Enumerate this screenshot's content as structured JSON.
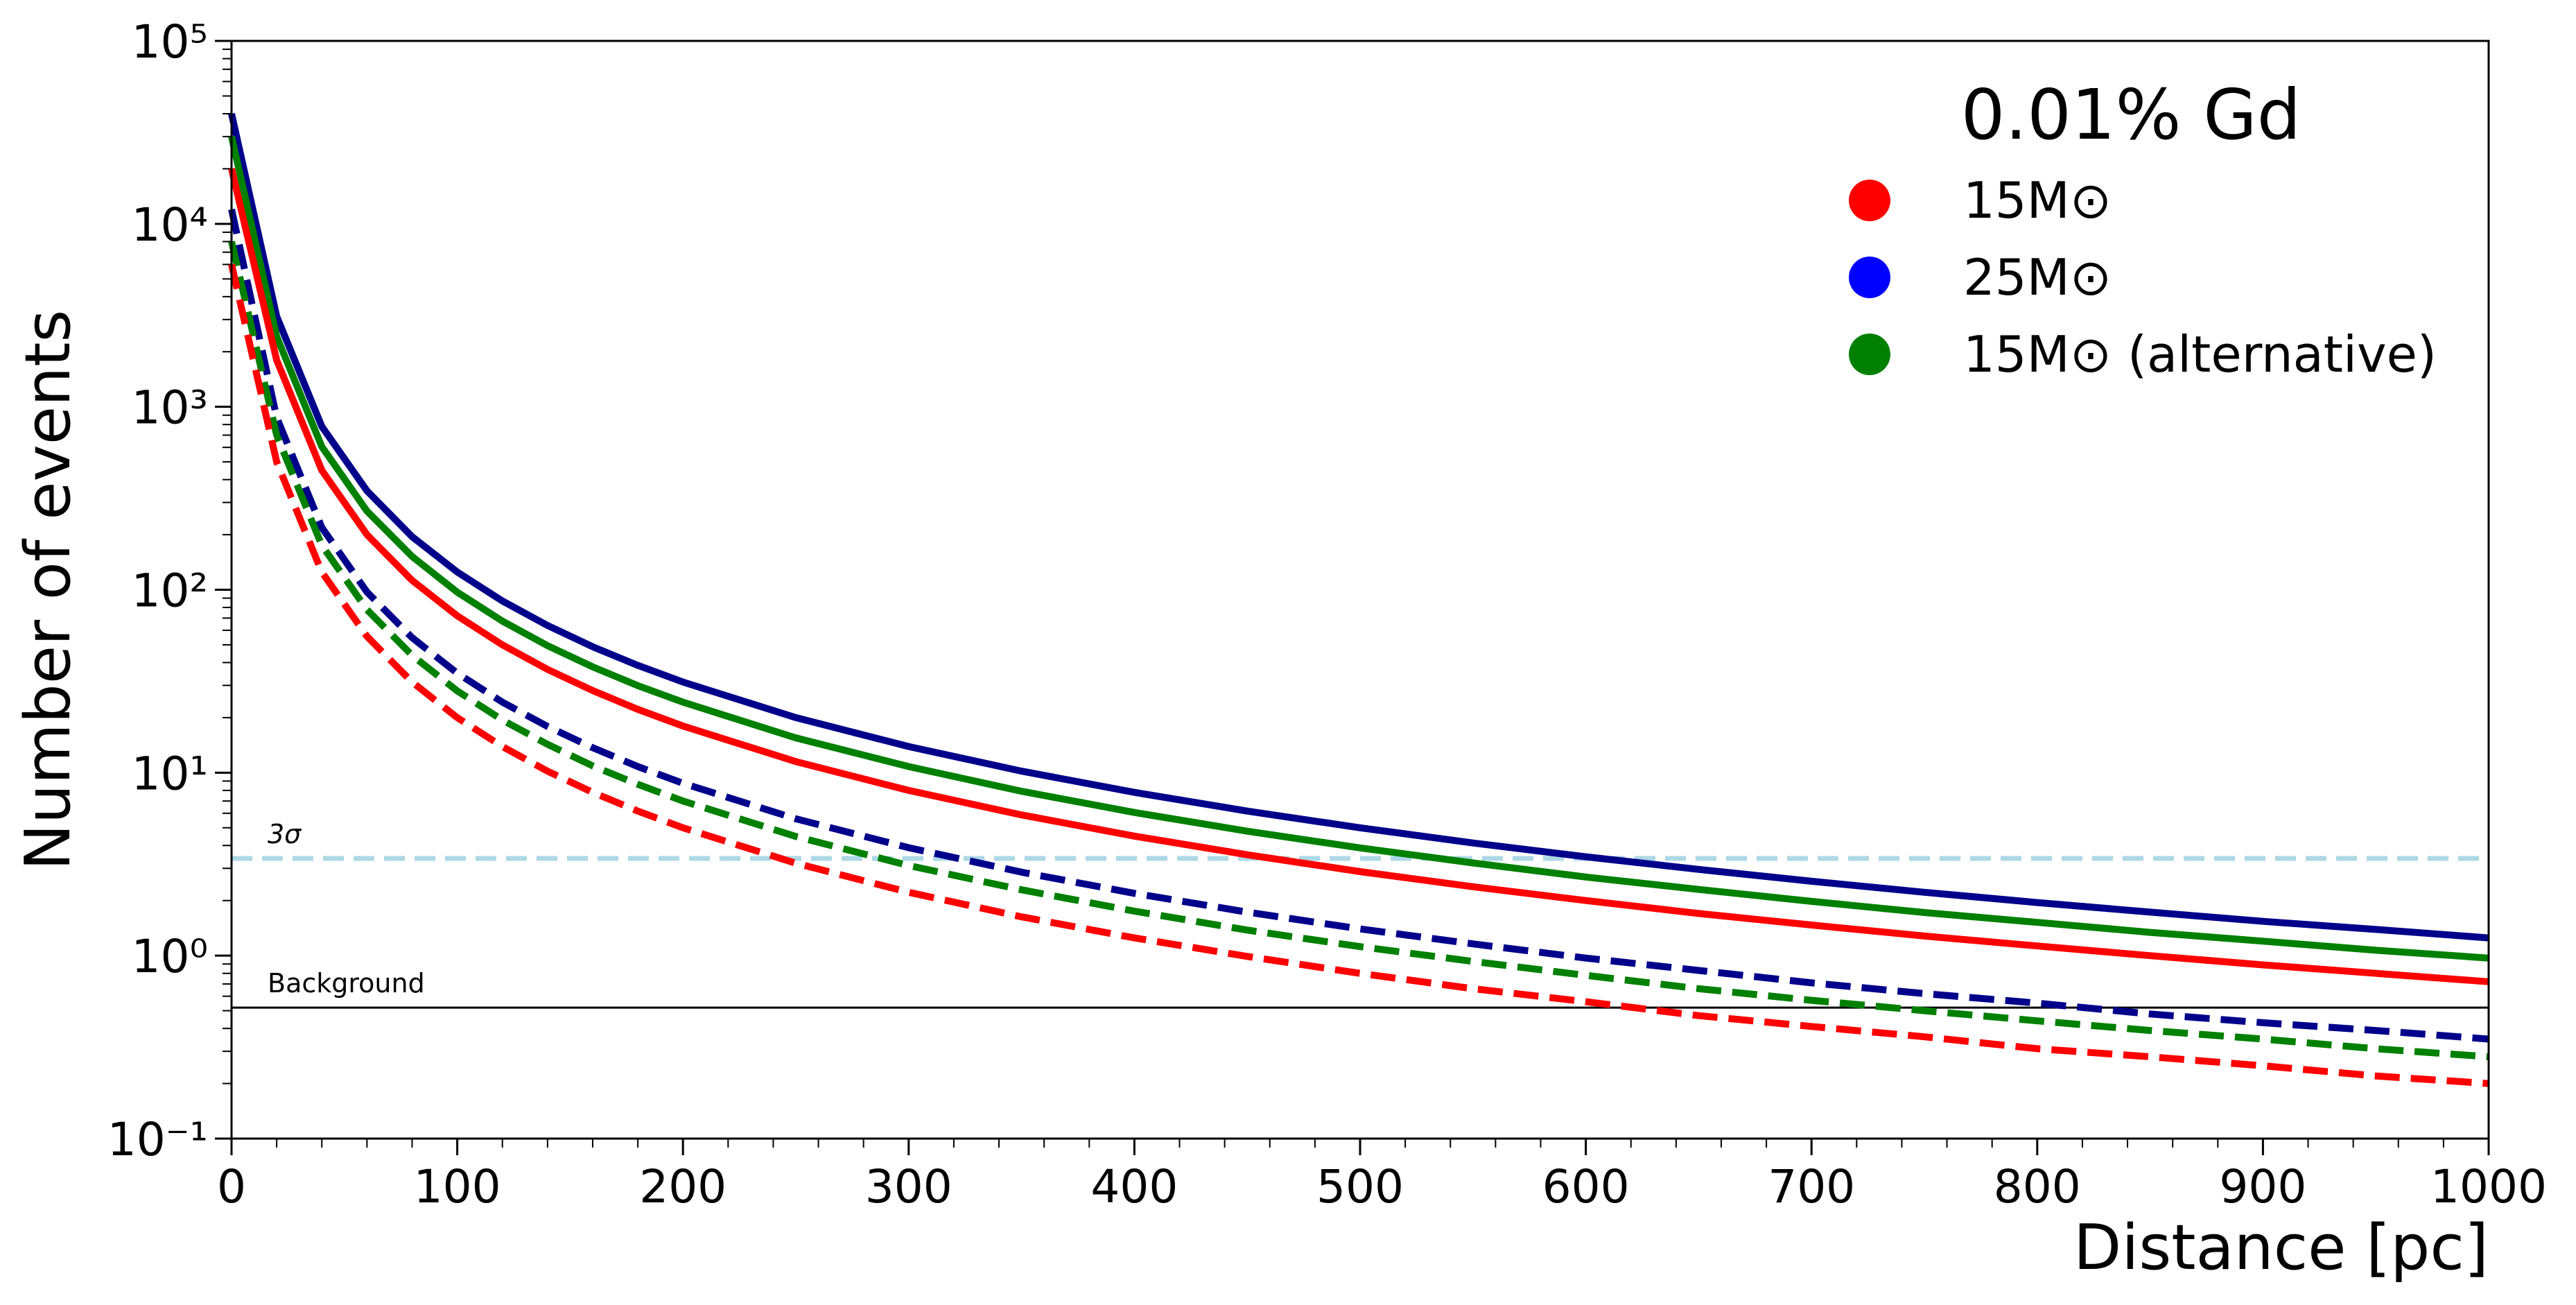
{
  "chart_data": {
    "type": "line",
    "xlabel": "Distance [pc]",
    "ylabel": "Number of events",
    "ylog": true,
    "xlim": [
      0,
      1000
    ],
    "ylim": [
      0.1,
      100000
    ],
    "xticks": [
      0,
      100,
      200,
      300,
      400,
      500,
      600,
      700,
      800,
      900,
      1000
    ],
    "xminorticks": [
      20,
      40,
      60,
      80,
      120,
      140,
      160,
      180,
      220,
      240,
      260,
      280,
      320,
      340,
      360,
      380,
      420,
      440,
      460,
      480,
      520,
      540,
      560,
      580,
      620,
      640,
      660,
      680,
      720,
      740,
      760,
      780,
      820,
      840,
      860,
      880,
      920,
      940,
      960,
      980
    ],
    "yticks": [
      {
        "value": 0.1,
        "label": "10⁻¹"
      },
      {
        "value": 1,
        "label": "10⁰"
      },
      {
        "value": 10,
        "label": "10¹"
      },
      {
        "value": 100,
        "label": "10²"
      },
      {
        "value": 1000,
        "label": "10³"
      },
      {
        "value": 10000,
        "label": "10⁴"
      },
      {
        "value": 100000,
        "label": "10⁵"
      }
    ],
    "yminorticks": [
      0.2,
      0.3,
      0.4,
      0.5,
      0.6,
      0.7,
      0.8,
      0.9,
      2,
      3,
      4,
      5,
      6,
      7,
      8,
      9,
      20,
      30,
      40,
      50,
      60,
      70,
      80,
      90,
      200,
      300,
      400,
      500,
      600,
      700,
      800,
      900,
      2000,
      3000,
      4000,
      5000,
      6000,
      7000,
      8000,
      9000,
      20000,
      30000,
      40000,
      50000,
      60000,
      70000,
      80000,
      90000
    ],
    "x": [
      0,
      20,
      40,
      60,
      80,
      100,
      120,
      140,
      160,
      180,
      200,
      250,
      300,
      350,
      400,
      450,
      500,
      550,
      600,
      650,
      700,
      750,
      800,
      850,
      900,
      950,
      1000
    ],
    "series": [
      {
        "color": "#00008b",
        "dash": false,
        "values": [
          40000,
          3125,
          781,
          347,
          195,
          125,
          86.8,
          63.8,
          48.8,
          38.6,
          31.3,
          20,
          13.9,
          10.2,
          7.81,
          6.17,
          5.0,
          4.13,
          3.47,
          2.96,
          2.55,
          2.22,
          1.95,
          1.73,
          1.54,
          1.39,
          1.25
        ]
      },
      {
        "color": "#008000",
        "dash": false,
        "values": [
          30000,
          2425,
          606,
          269,
          152,
          97,
          67.4,
          49.5,
          37.9,
          29.9,
          24.3,
          15.5,
          10.8,
          7.92,
          6.06,
          4.79,
          3.88,
          3.21,
          2.69,
          2.3,
          1.98,
          1.72,
          1.52,
          1.34,
          1.2,
          1.07,
          0.97
        ]
      },
      {
        "color": "#ff0000",
        "dash": false,
        "values": [
          20000,
          1800,
          450,
          200,
          112.5,
          72,
          50,
          36.7,
          28.1,
          22.2,
          18,
          11.5,
          8,
          5.88,
          4.5,
          3.56,
          2.88,
          2.38,
          2,
          1.7,
          1.47,
          1.28,
          1.13,
          1.0,
          0.89,
          0.8,
          0.72
        ]
      },
      {
        "color": "#00008b",
        "dash": true,
        "values": [
          12000,
          875,
          219,
          97.2,
          54.7,
          35,
          24.3,
          17.9,
          13.7,
          10.8,
          8.75,
          5.6,
          3.89,
          2.86,
          2.19,
          1.73,
          1.4,
          1.16,
          0.97,
          0.83,
          0.71,
          0.62,
          0.55,
          0.48,
          0.43,
          0.39,
          0.35
        ]
      },
      {
        "color": "#008000",
        "dash": true,
        "values": [
          8000,
          700,
          175,
          77.8,
          43.8,
          28,
          19.4,
          14.3,
          10.9,
          8.64,
          7,
          4.48,
          3.11,
          2.29,
          1.75,
          1.38,
          1.12,
          0.93,
          0.78,
          0.66,
          0.57,
          0.5,
          0.44,
          0.39,
          0.35,
          0.31,
          0.28
        ]
      },
      {
        "color": "#ff0000",
        "dash": true,
        "values": [
          6000,
          500,
          125,
          55.6,
          31.3,
          20,
          13.9,
          10.2,
          7.81,
          6.17,
          5,
          3.2,
          2.22,
          1.63,
          1.25,
          0.99,
          0.8,
          0.66,
          0.56,
          0.47,
          0.41,
          0.36,
          0.31,
          0.28,
          0.25,
          0.22,
          0.2
        ]
      }
    ],
    "reference_lines": [
      {
        "label": "3σ",
        "value": 3.4,
        "color": "#add8e6",
        "dash": true
      },
      {
        "label": "Background",
        "value": 0.52,
        "color": "#000000",
        "dash": false
      }
    ],
    "legend": {
      "title": "0.01% Gd",
      "position": "upper right",
      "entries": [
        {
          "label": "15M⊙",
          "color": "#ff0000"
        },
        {
          "label": "25M⊙",
          "color": "#0000ff"
        },
        {
          "label": "15M⊙ (alternative)",
          "color": "#008000"
        }
      ]
    }
  }
}
